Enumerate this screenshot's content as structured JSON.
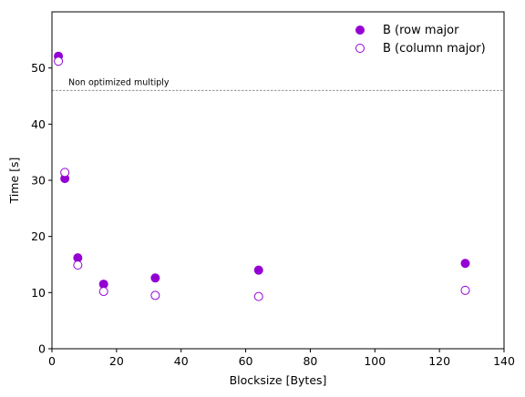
{
  "chart_data": {
    "type": "scatter",
    "xlabel": "Blocksize [Bytes]",
    "ylabel": "Time [s]",
    "xlim": [
      0,
      140
    ],
    "ylim": [
      0,
      60
    ],
    "xticks": [
      0,
      20,
      40,
      60,
      80,
      100,
      120,
      140
    ],
    "yticks": [
      0,
      10,
      20,
      30,
      40,
      50
    ],
    "legend_position": "top-right",
    "series": [
      {
        "name": "B (row major",
        "marker": "filled-circle",
        "color": "#9400D3",
        "points": [
          {
            "x": 2,
            "y": 52.1
          },
          {
            "x": 4,
            "y": 30.3
          },
          {
            "x": 8,
            "y": 16.2
          },
          {
            "x": 16,
            "y": 11.5
          },
          {
            "x": 32,
            "y": 12.6
          },
          {
            "x": 64,
            "y": 14.0
          },
          {
            "x": 128,
            "y": 15.2
          }
        ]
      },
      {
        "name": "B (column major)",
        "marker": "hollow-circle",
        "color": "#9400D3",
        "points": [
          {
            "x": 2,
            "y": 51.2
          },
          {
            "x": 4,
            "y": 31.4
          },
          {
            "x": 8,
            "y": 14.9
          },
          {
            "x": 16,
            "y": 10.2
          },
          {
            "x": 32,
            "y": 9.5
          },
          {
            "x": 64,
            "y": 9.3
          },
          {
            "x": 128,
            "y": 10.4
          }
        ]
      }
    ],
    "reference_line": {
      "y": 46,
      "label": "Non optimized multiply",
      "color": "#808080"
    }
  }
}
